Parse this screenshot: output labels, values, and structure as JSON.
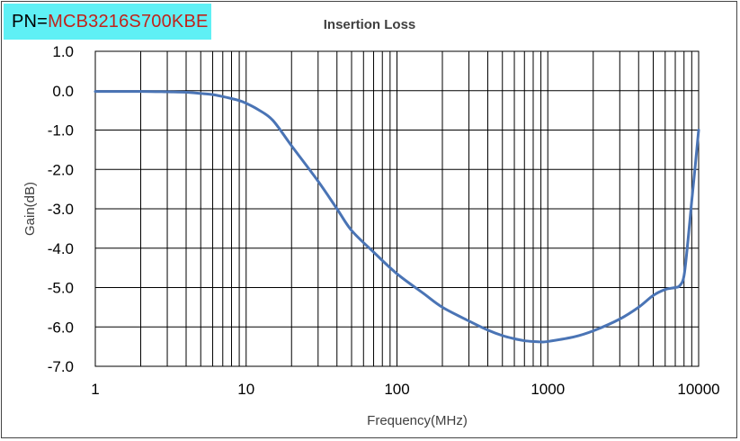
{
  "part_number": {
    "prefix": "PN=",
    "value": "MCB3216S700KBE",
    "value_color": "#c0231b",
    "background": "#5ff0f5"
  },
  "chart_data": {
    "type": "line",
    "title": "Insertion Loss",
    "xlabel": "Frequency(MHz)",
    "ylabel": "Gain(dB)",
    "x_scale": "log",
    "xlim": [
      1,
      10000
    ],
    "ylim": [
      -7,
      1
    ],
    "yticks": [
      1,
      0,
      -1,
      -2,
      -3,
      -4,
      -5,
      -6,
      -7
    ],
    "ytick_labels": [
      "1.0",
      "0.0",
      "-1.0",
      "-2.0",
      "-3.0",
      "-4.0",
      "-5.0",
      "-6.0",
      "-7.0"
    ],
    "xticks": [
      1,
      10,
      100,
      1000,
      10000
    ],
    "xtick_labels": [
      "1",
      "10",
      "100",
      "1000",
      "10000"
    ],
    "grid": true,
    "line_color": "#4a74b5",
    "series": [
      {
        "x": [
          1,
          2,
          3,
          4,
          5,
          6,
          7,
          8,
          9,
          10,
          12,
          15,
          20,
          30,
          40,
          50,
          70,
          100,
          150,
          200,
          300,
          400,
          500,
          600,
          700,
          800,
          900,
          1000,
          1500,
          2000,
          3000,
          4000,
          5000,
          6000,
          7000,
          7500,
          8000,
          8500,
          9000,
          9500,
          10000
        ],
        "y": [
          -0.02,
          -0.02,
          -0.03,
          -0.04,
          -0.07,
          -0.1,
          -0.15,
          -0.2,
          -0.25,
          -0.32,
          -0.48,
          -0.75,
          -1.4,
          -2.3,
          -3.0,
          -3.55,
          -4.1,
          -4.65,
          -5.15,
          -5.5,
          -5.85,
          -6.08,
          -6.22,
          -6.3,
          -6.35,
          -6.37,
          -6.38,
          -6.37,
          -6.25,
          -6.1,
          -5.8,
          -5.5,
          -5.2,
          -5.05,
          -5.0,
          -4.95,
          -4.7,
          -3.8,
          -2.8,
          -1.9,
          -1.0
        ]
      }
    ]
  }
}
